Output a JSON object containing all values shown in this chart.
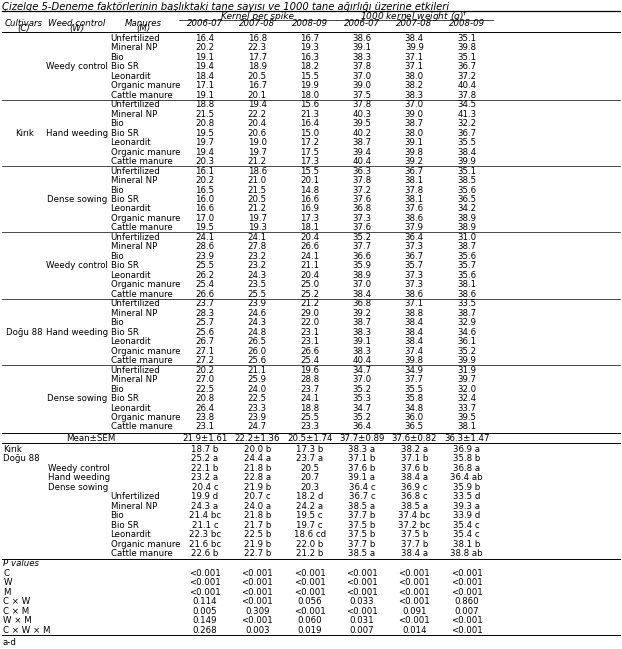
{
  "title": "Çizelge 5-Deneme faktörlerinin başlıktaki tane sayısı ve 1000 tane ağırlığı üzerine etkileri",
  "col_headers": [
    "Cultivars\n(C)",
    "Weed control\n(W)",
    "Manures\n(M)",
    "2006-07",
    "2007-08",
    "2008-09",
    "2006-07",
    "2007-08",
    "2008-09"
  ],
  "group1": "Kernel per spike",
  "group2": "1000 kernel weight (g)",
  "rows": [
    [
      "",
      "Weedy control",
      "Unfertilized",
      "16.4",
      "16.8",
      "16.7",
      "38.6",
      "38.4",
      "35.1"
    ],
    [
      "",
      "",
      "Mineral NP",
      "20.2",
      "22.3",
      "19.3",
      "39.1",
      "39.9",
      "39.8"
    ],
    [
      "",
      "",
      "Bio",
      "19.1",
      "17.7",
      "16.3",
      "38.3",
      "37.1",
      "35.1"
    ],
    [
      "",
      "",
      "Bio SR",
      "19.4",
      "18.9",
      "18.2",
      "37.8",
      "37.1",
      "36.7"
    ],
    [
      "",
      "",
      "Leonardit",
      "18.4",
      "20.5",
      "15.5",
      "37.0",
      "38.0",
      "37.2"
    ],
    [
      "",
      "",
      "Organic manure",
      "17.1",
      "16.7",
      "19.9",
      "39.0",
      "38.2",
      "40.4"
    ],
    [
      "",
      "",
      "Cattle manure",
      "19.1",
      "20.1",
      "18.0",
      "37.5",
      "38.3",
      "37.8"
    ],
    [
      "Kırık",
      "Hand weeding",
      "Unfertilized",
      "18.8",
      "19.4",
      "15.6",
      "37.8",
      "37.0",
      "34.5"
    ],
    [
      "",
      "",
      "Mineral NP",
      "21.5",
      "22.2",
      "21.3",
      "40.3",
      "39.0",
      "41.3"
    ],
    [
      "",
      "",
      "Bio",
      "20.8",
      "20.4",
      "16.4",
      "39.5",
      "38.7",
      "32.2"
    ],
    [
      "",
      "",
      "Bio SR",
      "19.5",
      "20.6",
      "15.0",
      "40.2",
      "38.0",
      "36.7"
    ],
    [
      "",
      "",
      "Leonardit",
      "19.7",
      "19.0",
      "17.2",
      "38.7",
      "39.1",
      "35.5"
    ],
    [
      "",
      "",
      "Organic manure",
      "19.4",
      "19.7",
      "17.5",
      "39.4",
      "39.8",
      "38.4"
    ],
    [
      "",
      "",
      "Cattle manure",
      "20.3",
      "21.2",
      "17.3",
      "40.4",
      "39.2",
      "39.9"
    ],
    [
      "",
      "Dense sowing",
      "Unfertilized",
      "16.1",
      "18.6",
      "15.5",
      "36.3",
      "36.7",
      "35.1"
    ],
    [
      "",
      "",
      "Mineral NP",
      "20.2",
      "21.0",
      "20.1",
      "37.8",
      "38.1",
      "38.5"
    ],
    [
      "",
      "",
      "Bio",
      "16.5",
      "21.5",
      "14.8",
      "37.2",
      "37.8",
      "35.6"
    ],
    [
      "",
      "",
      "Bio SR",
      "16.0",
      "20.5",
      "16.6",
      "37.6",
      "38.1",
      "36.5"
    ],
    [
      "",
      "",
      "Leonardit",
      "16.6",
      "21.2",
      "16.9",
      "36.8",
      "37.6",
      "34.2"
    ],
    [
      "",
      "",
      "Organic manure",
      "17.0",
      "19.7",
      "17.3",
      "37.3",
      "38.6",
      "38.9"
    ],
    [
      "",
      "",
      "Cattle manure",
      "19.5",
      "19.3",
      "18.1",
      "37.6",
      "37.9",
      "38.9"
    ],
    [
      "",
      "Weedy control",
      "Unfertilized",
      "24.1",
      "24.1",
      "20.4",
      "35.2",
      "36.4",
      "31.0"
    ],
    [
      "",
      "",
      "Mineral NP",
      "28.6",
      "27.8",
      "26.6",
      "37.7",
      "37.3",
      "38.7"
    ],
    [
      "",
      "",
      "Bio",
      "23.9",
      "23.2",
      "24.1",
      "36.6",
      "36.7",
      "35.6"
    ],
    [
      "",
      "",
      "Bio SR",
      "25.5",
      "23.2",
      "21.1",
      "35.9",
      "35.7",
      "35.7"
    ],
    [
      "",
      "",
      "Leonardit",
      "26.2",
      "24.3",
      "20.4",
      "38.9",
      "37.3",
      "35.6"
    ],
    [
      "",
      "",
      "Organic manure",
      "25.4",
      "23.5",
      "25.0",
      "37.0",
      "37.3",
      "38.1"
    ],
    [
      "",
      "",
      "Cattle manure",
      "26.6",
      "25.5",
      "25.2",
      "38.4",
      "38.6",
      "38.6"
    ],
    [
      "Doğu 88",
      "Hand weeding",
      "Unfertilized",
      "23.7",
      "23.9",
      "21.2",
      "36.8",
      "37.1",
      "33.5"
    ],
    [
      "",
      "",
      "Mineral NP",
      "28.3",
      "24.6",
      "29.0",
      "39.2",
      "38.8",
      "38.7"
    ],
    [
      "",
      "",
      "Bio",
      "25.7",
      "24.3",
      "22.0",
      "38.7",
      "38.4",
      "32.9"
    ],
    [
      "",
      "",
      "Bio SR",
      "25.6",
      "24.8",
      "23.1",
      "38.3",
      "38.4",
      "34.6"
    ],
    [
      "",
      "",
      "Leonardit",
      "26.7",
      "26.5",
      "23.1",
      "39.1",
      "38.4",
      "36.1"
    ],
    [
      "",
      "",
      "Organic manure",
      "27.1",
      "26.0",
      "26.6",
      "38.3",
      "37.4",
      "35.2"
    ],
    [
      "",
      "",
      "Cattle manure",
      "27.2",
      "25.6",
      "25.4",
      "40.4",
      "39.8",
      "39.9"
    ],
    [
      "",
      "Dense sowing",
      "Unfertilized",
      "20.2",
      "21.1",
      "19.6",
      "34.7",
      "34.9",
      "31.9"
    ],
    [
      "",
      "",
      "Mineral NP",
      "27.0",
      "25.9",
      "28.8",
      "37.0",
      "37.7",
      "39.7"
    ],
    [
      "",
      "",
      "Bio",
      "22.5",
      "24.0",
      "23.7",
      "35.2",
      "35.5",
      "32.0"
    ],
    [
      "",
      "",
      "Bio SR",
      "20.8",
      "22.5",
      "24.1",
      "35.3",
      "35.8",
      "32.4"
    ],
    [
      "",
      "",
      "Leonardit",
      "26.4",
      "23.3",
      "18.8",
      "34.7",
      "34.8",
      "33.7"
    ],
    [
      "",
      "",
      "Organic manure",
      "23.8",
      "23.9",
      "25.5",
      "35.2",
      "36.0",
      "39.5"
    ],
    [
      "",
      "",
      "Cattle manure",
      "23.1",
      "24.7",
      "23.3",
      "36.4",
      "36.5",
      "38.1"
    ]
  ],
  "mean_row": [
    "Mean±SEM",
    "21.9±1.61",
    "22.2±1.36",
    "20.5±1.74",
    "37.7±0.89",
    "37.6±0.82",
    "36.3±1.47"
  ],
  "summary_rows": [
    [
      "Kırık",
      "",
      "",
      "18.7 b",
      "20.0 b",
      "17.3 b",
      "38.3 a",
      "38.2 a",
      "36.9 a"
    ],
    [
      "Doğu 88",
      "",
      "",
      "25.2 a",
      "24.4 a",
      "23.7 a",
      "37.1 b",
      "37.1 b",
      "35.8 b"
    ],
    [
      "",
      "Weedy control",
      "",
      "22.1 b",
      "21.8 b",
      "20.5",
      "37.6 b",
      "37.6 b",
      "36.8 a"
    ],
    [
      "",
      "Hand weeding",
      "",
      "23.2 a",
      "22.8 a",
      "20.7",
      "39.1 a",
      "38.4 a",
      "36.4 ab"
    ],
    [
      "",
      "Dense sowing",
      "",
      "20.4 c",
      "21.9 b",
      "20.3",
      "36.4 c",
      "36.9 c",
      "35.9 b"
    ],
    [
      "",
      "",
      "Unfertilized",
      "19.9 d",
      "20.7 c",
      "18.2 d",
      "36.7 c",
      "36.8 c",
      "33.5 d"
    ],
    [
      "",
      "",
      "Mineral NP",
      "24.3 a",
      "24.0 a",
      "24.2 a",
      "38.5 a",
      "38.5 a",
      "39.3 a"
    ],
    [
      "",
      "",
      "Bio",
      "21.4 bc",
      "21.8 b",
      "19.5 c",
      "37.7 b",
      "37.4 bc",
      "33.9 d"
    ],
    [
      "",
      "",
      "Bio SR",
      "21.1 c",
      "21.7 b",
      "19.7 c",
      "37.5 b",
      "37.2 bc",
      "35.4 c"
    ],
    [
      "",
      "",
      "Leonardit",
      "22.3 bc",
      "22.5 b",
      "18.6 cd",
      "37.5 b",
      "37.5 b",
      "35.4 c"
    ],
    [
      "",
      "",
      "Organic manure",
      "21.6 bc",
      "21.9 b",
      "22.0 b",
      "37.7 b",
      "37.7 b",
      "38.1 b"
    ],
    [
      "",
      "",
      "Cattle manure",
      "22.6 b",
      "22.7 b",
      "21.2 b",
      "38.5 a",
      "38.4 a",
      "38.8 ab"
    ]
  ],
  "pvalue_label": "P values",
  "pvalue_rows": [
    [
      "C",
      "<0.001",
      "<0.001",
      "<0.001",
      "<0.001",
      "<0.001",
      "<0.001"
    ],
    [
      "W",
      "<0.001",
      "<0.001",
      "<0.001",
      "<0.001",
      "<0.001",
      "<0.001"
    ],
    [
      "M",
      "<0.001",
      "<0.001",
      "<0.001",
      "<0.001",
      "<0.001",
      "<0.001"
    ],
    [
      "C × W",
      "0.114",
      "<0.001",
      "0.056",
      "0.033",
      "<0.001",
      "0.860"
    ],
    [
      "C × M",
      "0.005",
      "0.309",
      "<0.001",
      "<0.001",
      "0.091",
      "0.007"
    ],
    [
      "W × M",
      "0.149",
      "<0.001",
      "0.060",
      "0.031",
      "<0.001",
      "<0.001"
    ],
    [
      "C × W × M",
      "0.268",
      "0.003",
      "0.019",
      "0.007",
      "0.014",
      "<0.001"
    ]
  ],
  "footnote": "a-d"
}
